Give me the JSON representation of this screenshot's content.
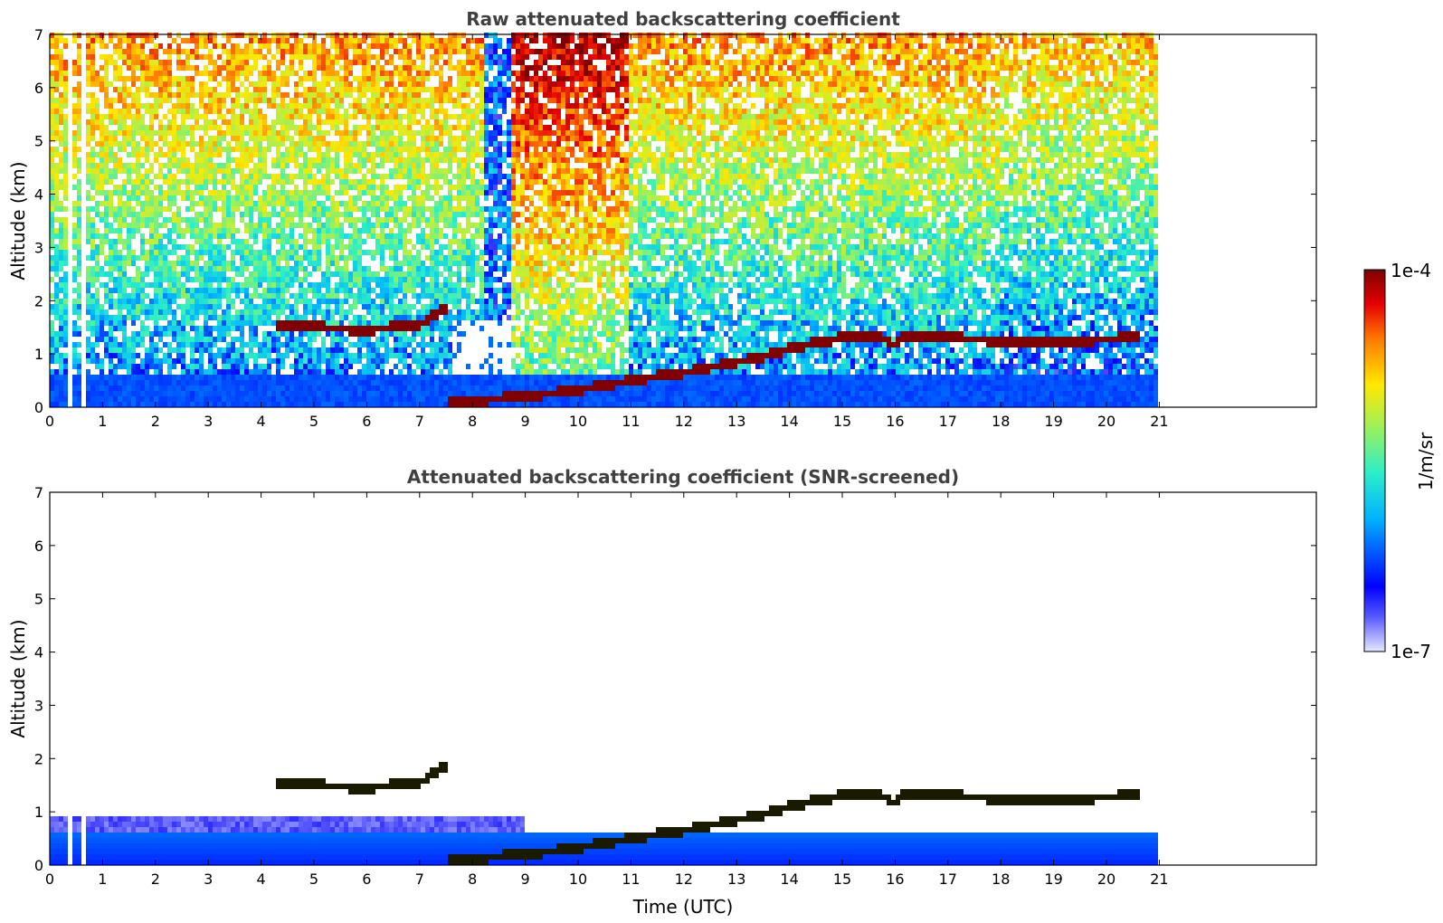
{
  "chart_data": [
    {
      "type": "heatmap",
      "title": "Raw attenuated backscattering coefficient",
      "xlabel": "",
      "ylabel": "Altitude (km)",
      "xlim": [
        0,
        24
      ],
      "ylim": [
        0,
        7
      ],
      "xticks": [
        "0",
        "1",
        "2",
        "3",
        "4",
        "5",
        "6",
        "7",
        "8",
        "9",
        "10",
        "11",
        "12",
        "13",
        "14",
        "15",
        "16",
        "17",
        "18",
        "19",
        "20",
        "21"
      ],
      "yticks": [
        "0",
        "1",
        "2",
        "3",
        "4",
        "5",
        "6",
        "7"
      ],
      "data_extent_hours": [
        0,
        21
      ],
      "cloud_layer": {
        "time_utc": [
          4.3,
          5.0,
          6.0,
          7.0,
          7.4,
          7.6,
          8.0,
          9.0,
          10.0,
          11.0,
          12.0,
          13.0,
          13.5,
          14.0,
          15.0,
          15.7,
          16.0,
          16.2,
          17.0,
          18.0,
          19.0,
          20.0,
          20.6
        ],
        "altitude_km": [
          1.55,
          1.5,
          1.45,
          1.55,
          1.8,
          0.12,
          0.12,
          0.2,
          0.32,
          0.5,
          0.65,
          0.85,
          0.95,
          1.1,
          1.3,
          1.35,
          1.15,
          1.35,
          1.3,
          1.25,
          1.2,
          1.28,
          1.3
        ]
      }
    },
    {
      "type": "heatmap",
      "title": "Attenuated backscattering coefficient (SNR-screened)",
      "xlabel": "Time (UTC)",
      "ylabel": "Altitude (km)",
      "xlim": [
        0,
        24
      ],
      "ylim": [
        0,
        7
      ],
      "xticks": [
        "0",
        "1",
        "2",
        "3",
        "4",
        "5",
        "6",
        "7",
        "8",
        "9",
        "10",
        "11",
        "12",
        "13",
        "14",
        "15",
        "16",
        "17",
        "18",
        "19",
        "20",
        "21"
      ],
      "yticks": [
        "0",
        "1",
        "2",
        "3",
        "4",
        "5",
        "6",
        "7"
      ],
      "data_extent_hours": [
        0,
        21
      ]
    }
  ],
  "colorbar": {
    "label": "1/m/sr",
    "max_label": "1e-4",
    "min_label": "1e-7",
    "colormap": [
      "#e6e8fb",
      "#0000ff",
      "#00b4ff",
      "#2cefc8",
      "#a8f050",
      "#ffe800",
      "#ff7800",
      "#e60000",
      "#7f0000"
    ]
  }
}
